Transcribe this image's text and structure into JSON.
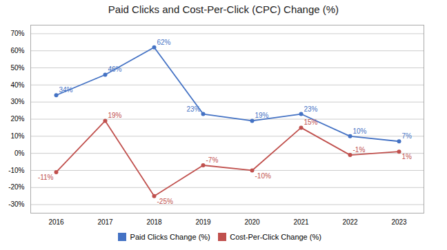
{
  "chart_data": {
    "type": "line",
    "title": "Paid Clicks and Cost-Per-Click (CPC) Change (%)",
    "categories": [
      "2016",
      "2017",
      "2018",
      "2019",
      "2020",
      "2021",
      "2022",
      "2023"
    ],
    "series": [
      {
        "name": "Paid Clicks Change (%)",
        "color": "#4472C4",
        "values": [
          34,
          46,
          62,
          23,
          19,
          23,
          10,
          7
        ],
        "value_labels": [
          "34%",
          "46%",
          "62%",
          "23%",
          "19%",
          "23%",
          "10%",
          "7%"
        ]
      },
      {
        "name": "Cost-Per-Click Change (%)",
        "color": "#C0504D",
        "values": [
          -11,
          19,
          -25,
          -7,
          -10,
          15,
          -1,
          1
        ],
        "value_labels": [
          "-11%",
          "19%",
          "-25%",
          "-7%",
          "-10%",
          "15%",
          "-1%",
          "1%"
        ]
      }
    ],
    "ylim": [
      -35,
      75
    ],
    "yticks": [
      {
        "value": -30,
        "label": "-30%"
      },
      {
        "value": -20,
        "label": "-20%"
      },
      {
        "value": -10,
        "label": "-10%"
      },
      {
        "value": 0,
        "label": "0%"
      },
      {
        "value": 10,
        "label": "10%"
      },
      {
        "value": 20,
        "label": "20%"
      },
      {
        "value": 30,
        "label": "30%"
      },
      {
        "value": 40,
        "label": "40%"
      },
      {
        "value": 50,
        "label": "50%"
      },
      {
        "value": 60,
        "label": "60%"
      },
      {
        "value": 70,
        "label": "70%"
      }
    ],
    "grid": true,
    "legend": "bottom",
    "marker": "circle",
    "data_labels": true
  }
}
